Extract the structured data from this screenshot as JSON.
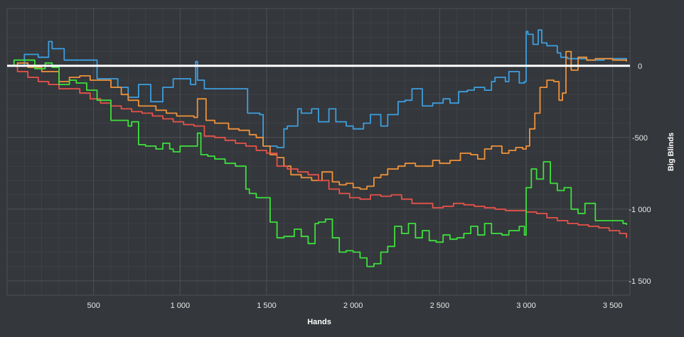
{
  "chart_data": {
    "type": "line",
    "title": "",
    "xlabel": "Hands",
    "ylabel": "Big Blinds",
    "xlim": [
      0,
      3600
    ],
    "ylim": [
      -1600,
      400
    ],
    "x_ticks": [
      500,
      1000,
      1500,
      2000,
      2500,
      3000,
      3500
    ],
    "x_tick_labels": [
      "500",
      "1 000",
      "1 500",
      "2 000",
      "2 500",
      "3 000",
      "3 500"
    ],
    "y_ticks": [
      0,
      -500,
      -1000,
      -1500
    ],
    "y_tick_labels": [
      "0",
      "-500",
      "-1 000",
      "-1 500"
    ],
    "grid": true,
    "legend": "none",
    "colors": {
      "background": "#34373b",
      "grid": "#4d5156",
      "zero_line": "#ffffff"
    },
    "series": [
      {
        "color": "#3d9fe0",
        "x": [
          0,
          100,
          180,
          240,
          260,
          330,
          460,
          520,
          610,
          640,
          700,
          760,
          800,
          830,
          900,
          960,
          1060,
          1090,
          1100,
          1140,
          1240,
          1320,
          1390,
          1460,
          1480,
          1510,
          1560,
          1600,
          1620,
          1680,
          1700,
          1760,
          1800,
          1860,
          1900,
          1960,
          2000,
          2060,
          2100,
          2160,
          2200,
          2260,
          2300,
          2340,
          2400,
          2460,
          2520,
          2560,
          2610,
          2660,
          2700,
          2760,
          2800,
          2820,
          2880,
          2900,
          2960,
          2990,
          3000,
          3010,
          3040,
          3070,
          3090,
          3120,
          3180,
          3200,
          3240,
          3290,
          3350,
          3400,
          3450,
          3500,
          3540,
          3580
        ],
        "y": [
          0,
          80,
          60,
          170,
          120,
          40,
          40,
          -90,
          -90,
          -150,
          -220,
          -130,
          -130,
          -250,
          -150,
          -90,
          -130,
          30,
          -100,
          -160,
          -160,
          -160,
          -330,
          -340,
          -560,
          -560,
          -570,
          -440,
          -420,
          -300,
          -330,
          -300,
          -390,
          -300,
          -390,
          -420,
          -440,
          -400,
          -340,
          -420,
          -340,
          -250,
          -240,
          -160,
          -280,
          -260,
          -230,
          -260,
          -180,
          -170,
          -150,
          -170,
          -110,
          -80,
          -110,
          -40,
          -120,
          -110,
          240,
          220,
          150,
          250,
          160,
          140,
          90,
          60,
          50,
          50,
          40,
          40,
          50,
          50,
          50,
          40
        ]
      },
      {
        "color": "#f0923a",
        "x": [
          0,
          60,
          120,
          200,
          260,
          300,
          360,
          420,
          480,
          540,
          600,
          660,
          700,
          760,
          800,
          860,
          920,
          980,
          1040,
          1080,
          1100,
          1150,
          1200,
          1280,
          1340,
          1400,
          1440,
          1480,
          1520,
          1560,
          1600,
          1640,
          1700,
          1760,
          1820,
          1880,
          1920,
          1960,
          2000,
          2040,
          2080,
          2120,
          2160,
          2200,
          2260,
          2300,
          2360,
          2400,
          2460,
          2500,
          2560,
          2620,
          2680,
          2720,
          2760,
          2800,
          2860,
          2900,
          2940,
          2980,
          3000,
          3020,
          3050,
          3080,
          3120,
          3160,
          3190,
          3210,
          3230,
          3260,
          3300,
          3350,
          3400,
          3450,
          3500,
          3540,
          3580
        ],
        "y": [
          0,
          20,
          -10,
          -40,
          -40,
          -110,
          -80,
          -70,
          -100,
          -100,
          -150,
          -200,
          -240,
          -280,
          -280,
          -310,
          -330,
          -350,
          -350,
          -360,
          -230,
          -380,
          -400,
          -440,
          -450,
          -480,
          -500,
          -560,
          -620,
          -640,
          -700,
          -760,
          -780,
          -800,
          -740,
          -810,
          -830,
          -820,
          -850,
          -860,
          -840,
          -780,
          -760,
          -720,
          -700,
          -680,
          -700,
          -700,
          -660,
          -680,
          -660,
          -610,
          -620,
          -650,
          -580,
          -560,
          -610,
          -590,
          -570,
          -580,
          -560,
          -440,
          -330,
          -150,
          -100,
          -110,
          -240,
          -190,
          100,
          -30,
          60,
          40,
          50,
          50,
          40,
          40,
          30
        ]
      },
      {
        "color": "#e8524a",
        "x": [
          0,
          60,
          120,
          180,
          240,
          300,
          360,
          420,
          480,
          540,
          600,
          660,
          720,
          780,
          840,
          900,
          960,
          1020,
          1080,
          1140,
          1200,
          1260,
          1320,
          1380,
          1440,
          1500,
          1560,
          1620,
          1680,
          1740,
          1800,
          1860,
          1920,
          1980,
          2040,
          2100,
          2160,
          2220,
          2280,
          2340,
          2400,
          2460,
          2520,
          2580,
          2640,
          2700,
          2760,
          2820,
          2880,
          2940,
          3000,
          3060,
          3120,
          3180,
          3240,
          3300,
          3360,
          3420,
          3480,
          3540,
          3580
        ],
        "y": [
          0,
          -40,
          -80,
          -110,
          -130,
          -160,
          -160,
          -190,
          -230,
          -260,
          -280,
          -300,
          -320,
          -330,
          -350,
          -370,
          -390,
          -410,
          -420,
          -490,
          -500,
          -520,
          -540,
          -560,
          -590,
          -610,
          -700,
          -720,
          -740,
          -760,
          -800,
          -860,
          -890,
          -920,
          -930,
          -900,
          -910,
          -900,
          -930,
          -960,
          -960,
          -990,
          -980,
          -960,
          -970,
          -980,
          -990,
          -1000,
          -1010,
          -1010,
          -1020,
          -1030,
          -1060,
          -1080,
          -1100,
          -1110,
          -1120,
          -1130,
          -1150,
          -1170,
          -1200
        ]
      },
      {
        "color": "#3ee03e",
        "x": [
          0,
          40,
          100,
          160,
          200,
          220,
          260,
          300,
          360,
          400,
          460,
          520,
          560,
          600,
          640,
          700,
          720,
          760,
          800,
          860,
          900,
          940,
          960,
          1000,
          1060,
          1100,
          1120,
          1160,
          1200,
          1260,
          1320,
          1380,
          1400,
          1440,
          1480,
          1520,
          1560,
          1600,
          1660,
          1700,
          1740,
          1780,
          1800,
          1840,
          1880,
          1920,
          1960,
          2000,
          2040,
          2080,
          2120,
          2160,
          2200,
          2240,
          2280,
          2320,
          2360,
          2400,
          2440,
          2480,
          2520,
          2560,
          2600,
          2640,
          2680,
          2720,
          2760,
          2800,
          2860,
          2900,
          2960,
          2990,
          3000,
          3030,
          3060,
          3100,
          3140,
          3180,
          3220,
          3260,
          3300,
          3340,
          3400,
          3460,
          3520,
          3560,
          3580
        ],
        "y": [
          0,
          40,
          40,
          -20,
          -20,
          20,
          -10,
          -130,
          -100,
          -120,
          -170,
          -240,
          -240,
          -380,
          -380,
          -420,
          -390,
          -550,
          -560,
          -580,
          -540,
          -580,
          -600,
          -560,
          -560,
          -470,
          -620,
          -630,
          -650,
          -680,
          -700,
          -860,
          -890,
          -920,
          -920,
          -1090,
          -1200,
          -1190,
          -1140,
          -1190,
          -1240,
          -1100,
          -1090,
          -1070,
          -1200,
          -1300,
          -1290,
          -1300,
          -1340,
          -1400,
          -1380,
          -1300,
          -1260,
          -1120,
          -1170,
          -1100,
          -1200,
          -1150,
          -1220,
          -1230,
          -1180,
          -1210,
          -1200,
          -1170,
          -1120,
          -1180,
          -1100,
          -1170,
          -1180,
          -1150,
          -1120,
          -1180,
          -850,
          -720,
          -790,
          -670,
          -820,
          -870,
          -850,
          -1000,
          -1030,
          -960,
          -1080,
          -1080,
          -1080,
          -1100,
          -1110
        ]
      }
    ]
  }
}
